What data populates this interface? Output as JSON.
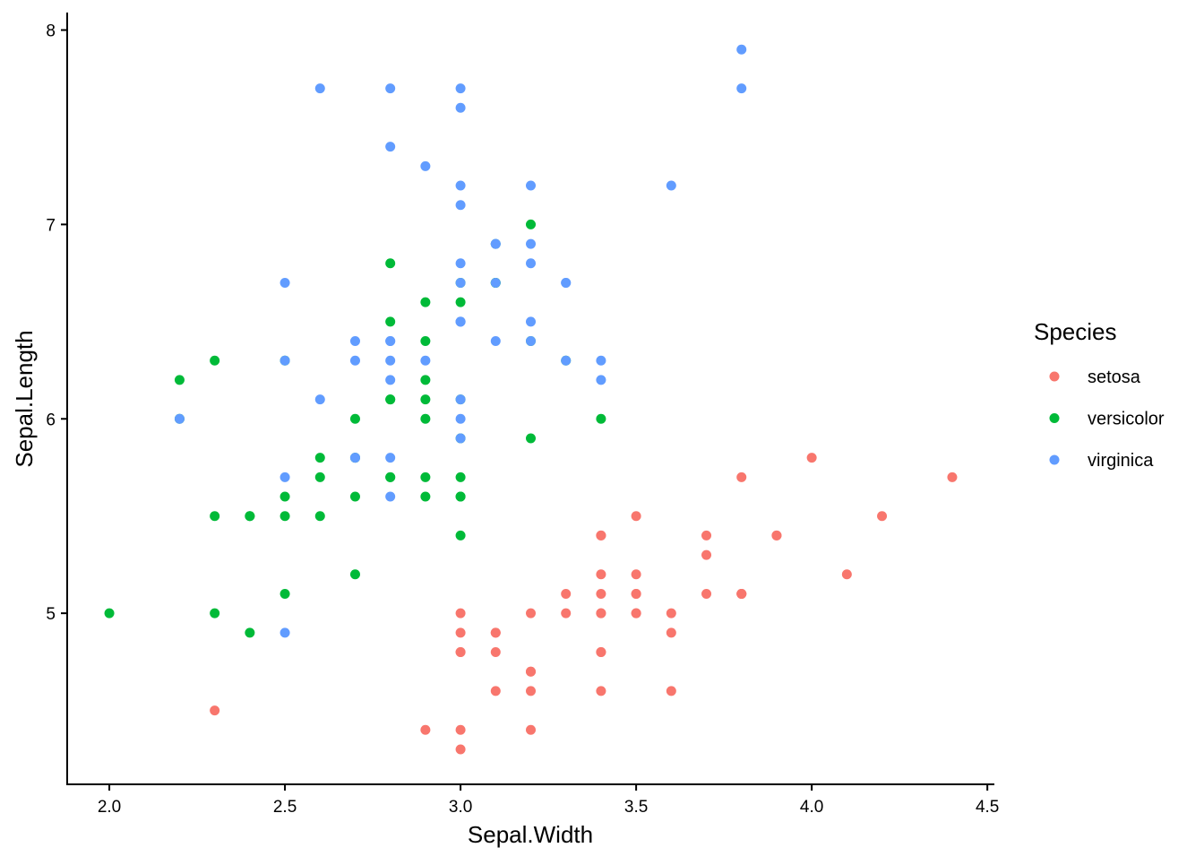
{
  "chart_data": {
    "type": "scatter",
    "title": "",
    "xlabel": "Sepal.Width",
    "ylabel": "Sepal.Length",
    "xlim": [
      1.88,
      4.52
    ],
    "ylim": [
      4.12,
      8.09
    ],
    "xticks": [
      "2.0",
      "2.5",
      "3.0",
      "3.5",
      "4.0",
      "4.5"
    ],
    "yticks": [
      "5",
      "6",
      "7",
      "8"
    ],
    "grid": false,
    "legend": {
      "title": "Species",
      "placement": "right"
    },
    "series": [
      {
        "name": "setosa",
        "color": "#F8766D",
        "points": [
          [
            3.5,
            5.1
          ],
          [
            3.0,
            4.9
          ],
          [
            3.2,
            4.7
          ],
          [
            3.1,
            4.6
          ],
          [
            3.6,
            5.0
          ],
          [
            3.9,
            5.4
          ],
          [
            3.4,
            4.6
          ],
          [
            3.4,
            5.0
          ],
          [
            2.9,
            4.4
          ],
          [
            3.1,
            4.9
          ],
          [
            3.7,
            5.4
          ],
          [
            3.4,
            4.8
          ],
          [
            3.0,
            4.8
          ],
          [
            3.0,
            4.3
          ],
          [
            4.0,
            5.8
          ],
          [
            4.4,
            5.7
          ],
          [
            3.9,
            5.4
          ],
          [
            3.5,
            5.1
          ],
          [
            3.8,
            5.7
          ],
          [
            3.8,
            5.1
          ],
          [
            3.4,
            5.4
          ],
          [
            3.7,
            5.1
          ],
          [
            3.6,
            4.6
          ],
          [
            3.3,
            5.1
          ],
          [
            3.4,
            4.8
          ],
          [
            3.0,
            5.0
          ],
          [
            3.4,
            5.0
          ],
          [
            3.5,
            5.2
          ],
          [
            3.4,
            5.2
          ],
          [
            3.2,
            4.7
          ],
          [
            3.1,
            4.8
          ],
          [
            3.4,
            5.4
          ],
          [
            4.1,
            5.2
          ],
          [
            4.2,
            5.5
          ],
          [
            3.1,
            4.9
          ],
          [
            3.2,
            5.0
          ],
          [
            3.5,
            5.5
          ],
          [
            3.6,
            4.9
          ],
          [
            3.0,
            4.4
          ],
          [
            3.4,
            5.1
          ],
          [
            3.5,
            5.0
          ],
          [
            2.3,
            4.5
          ],
          [
            3.2,
            4.4
          ],
          [
            3.5,
            5.0
          ],
          [
            3.8,
            5.1
          ],
          [
            3.0,
            4.8
          ],
          [
            3.8,
            5.1
          ],
          [
            3.2,
            4.6
          ],
          [
            3.7,
            5.3
          ],
          [
            3.3,
            5.0
          ]
        ]
      },
      {
        "name": "versicolor",
        "color": "#00BA38",
        "points": [
          [
            3.2,
            7.0
          ],
          [
            3.2,
            6.4
          ],
          [
            3.1,
            6.9
          ],
          [
            2.3,
            5.5
          ],
          [
            2.8,
            6.5
          ],
          [
            2.8,
            5.7
          ],
          [
            3.3,
            6.3
          ],
          [
            2.4,
            4.9
          ],
          [
            2.9,
            6.6
          ],
          [
            2.7,
            5.2
          ],
          [
            2.0,
            5.0
          ],
          [
            3.0,
            5.9
          ],
          [
            2.2,
            6.0
          ],
          [
            2.9,
            6.1
          ],
          [
            2.9,
            5.6
          ],
          [
            3.1,
            6.7
          ],
          [
            3.0,
            5.6
          ],
          [
            2.7,
            5.8
          ],
          [
            2.2,
            6.2
          ],
          [
            2.5,
            5.6
          ],
          [
            3.2,
            5.9
          ],
          [
            2.8,
            6.1
          ],
          [
            2.5,
            6.3
          ],
          [
            2.8,
            6.1
          ],
          [
            2.9,
            6.4
          ],
          [
            3.0,
            6.6
          ],
          [
            2.8,
            6.8
          ],
          [
            3.0,
            6.7
          ],
          [
            2.9,
            6.0
          ],
          [
            2.6,
            5.7
          ],
          [
            2.4,
            5.5
          ],
          [
            2.4,
            5.5
          ],
          [
            2.7,
            5.8
          ],
          [
            2.7,
            6.0
          ],
          [
            3.0,
            5.4
          ],
          [
            3.4,
            6.0
          ],
          [
            3.1,
            6.7
          ],
          [
            2.3,
            6.3
          ],
          [
            3.0,
            5.6
          ],
          [
            2.5,
            5.5
          ],
          [
            2.6,
            5.5
          ],
          [
            3.0,
            6.1
          ],
          [
            2.6,
            5.8
          ],
          [
            2.3,
            5.0
          ],
          [
            2.7,
            5.6
          ],
          [
            3.0,
            5.7
          ],
          [
            2.9,
            5.7
          ],
          [
            2.9,
            6.2
          ],
          [
            2.5,
            5.1
          ],
          [
            2.8,
            5.7
          ]
        ]
      },
      {
        "name": "virginica",
        "color": "#619CFF",
        "points": [
          [
            3.3,
            6.3
          ],
          [
            2.7,
            5.8
          ],
          [
            3.0,
            7.1
          ],
          [
            2.9,
            6.3
          ],
          [
            3.0,
            6.5
          ],
          [
            3.0,
            7.6
          ],
          [
            2.5,
            4.9
          ],
          [
            2.9,
            7.3
          ],
          [
            2.5,
            6.7
          ],
          [
            3.6,
            7.2
          ],
          [
            3.2,
            6.5
          ],
          [
            2.7,
            6.4
          ],
          [
            3.0,
            6.8
          ],
          [
            2.5,
            5.7
          ],
          [
            2.8,
            5.8
          ],
          [
            3.2,
            6.4
          ],
          [
            3.0,
            6.5
          ],
          [
            3.8,
            7.7
          ],
          [
            2.6,
            7.7
          ],
          [
            2.2,
            6.0
          ],
          [
            3.2,
            6.9
          ],
          [
            2.8,
            5.6
          ],
          [
            2.8,
            7.7
          ],
          [
            2.7,
            6.3
          ],
          [
            3.3,
            6.7
          ],
          [
            3.2,
            7.2
          ],
          [
            2.8,
            6.2
          ],
          [
            3.0,
            6.1
          ],
          [
            2.8,
            6.4
          ],
          [
            3.0,
            7.2
          ],
          [
            2.8,
            7.4
          ],
          [
            3.8,
            7.9
          ],
          [
            2.8,
            6.4
          ],
          [
            2.8,
            6.3
          ],
          [
            2.6,
            6.1
          ],
          [
            3.0,
            7.7
          ],
          [
            3.4,
            6.3
          ],
          [
            3.1,
            6.4
          ],
          [
            3.0,
            6.0
          ],
          [
            3.1,
            6.9
          ],
          [
            3.1,
            6.7
          ],
          [
            3.1,
            6.9
          ],
          [
            2.7,
            5.8
          ],
          [
            3.2,
            6.8
          ],
          [
            3.3,
            6.7
          ],
          [
            3.0,
            6.7
          ],
          [
            2.5,
            6.3
          ],
          [
            3.0,
            6.5
          ],
          [
            3.4,
            6.2
          ],
          [
            3.0,
            5.9
          ]
        ]
      }
    ]
  }
}
